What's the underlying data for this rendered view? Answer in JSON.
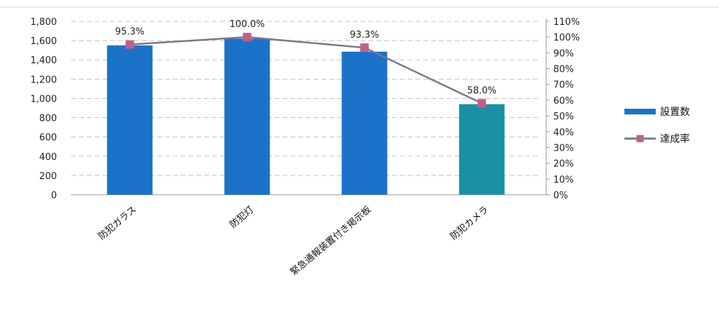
{
  "chart_data": {
    "type": "bar",
    "title": "",
    "xlabel": "",
    "ylabel": "",
    "categories": [
      "防犯ガラス",
      "防犯灯",
      "緊急通報装置付き掲示板",
      "防犯カメラ"
    ],
    "ylim": [
      0,
      1800
    ],
    "yticks": [
      "0",
      "200",
      "400",
      "600",
      "800",
      "1,000",
      "1,200",
      "1,400",
      "1,600",
      "1,800"
    ],
    "y2lim": [
      0,
      1.1
    ],
    "y2ticks": [
      "0%",
      "10%",
      "20%",
      "30%",
      "40%",
      "50%",
      "60%",
      "70%",
      "80%",
      "90%",
      "100%",
      "110%"
    ],
    "grid": true,
    "legend_position": "right",
    "series": [
      {
        "name": "設置数",
        "kind": "bar",
        "axis": "left",
        "color": "#1a72c9",
        "values": [
          1550,
          1620,
          1485,
          940
        ],
        "bar_labels": [
          "",
          "",
          "",
          ""
        ]
      },
      {
        "name": "達成率",
        "kind": "line",
        "axis": "right",
        "color": "#7a7a8c",
        "marker_color": "#c0608a",
        "values": [
          0.953,
          1.0,
          0.933,
          0.58
        ],
        "labels": [
          "95.3%",
          "100.0%",
          "93.3%",
          "58.0%"
        ]
      }
    ]
  }
}
